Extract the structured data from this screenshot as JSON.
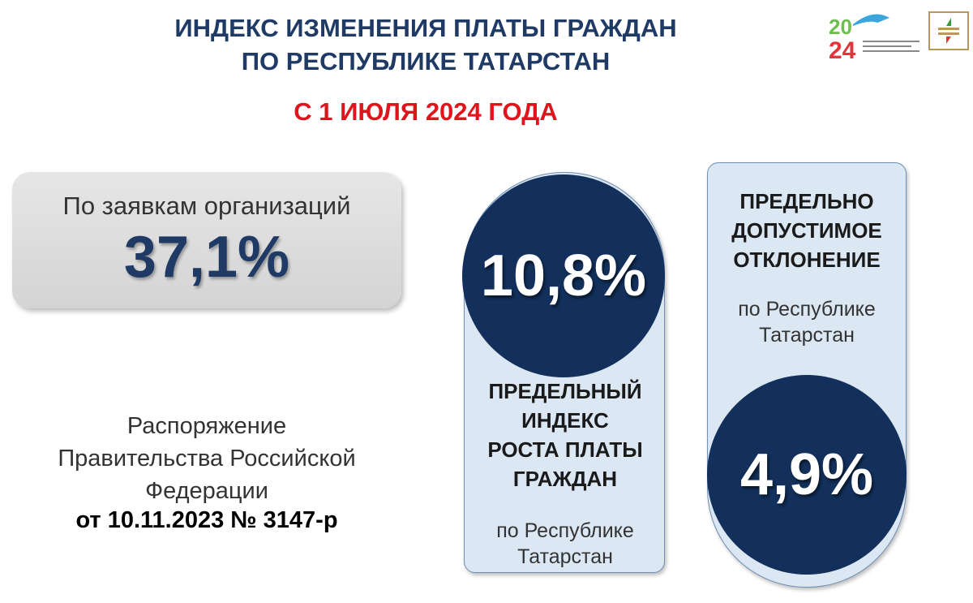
{
  "header": {
    "title_line1": "ИНДЕКС ИЗМЕНЕНИЯ ПЛАТЫ ГРАЖДАН",
    "title_line2": "ПО РЕСПУБЛИКЕ ТАТАРСТАН",
    "subtitle": "С 1 ИЮЛЯ 2024 ГОДА"
  },
  "logos": {
    "year_logo": "2024",
    "emblem": "emblem"
  },
  "applications": {
    "label": "По заявкам организаций",
    "value": "37,1%"
  },
  "decree": {
    "line1": "Распоряжение",
    "line2": "Правительства Российской",
    "line3": "Федерации",
    "line4": "от 10.11.2023 № 3147-р"
  },
  "index": {
    "value": "10,8%",
    "caption": [
      "ПРЕДЕЛЬНЫЙ",
      "ИНДЕКС",
      "РОСТА ПЛАТЫ",
      "ГРАЖДАН"
    ],
    "region": [
      "по Республике",
      "Татарстан"
    ]
  },
  "deviation": {
    "caption": [
      "ПРЕДЕЛЬНО",
      "ДОПУСТИМОЕ",
      "ОТКЛОНЕНИЕ"
    ],
    "region": [
      "по Республике",
      "Татарстан"
    ],
    "value": "4,9%"
  },
  "colors": {
    "navy": "#12305b",
    "red": "#e0141c",
    "capsule": "#dbe7f3"
  }
}
